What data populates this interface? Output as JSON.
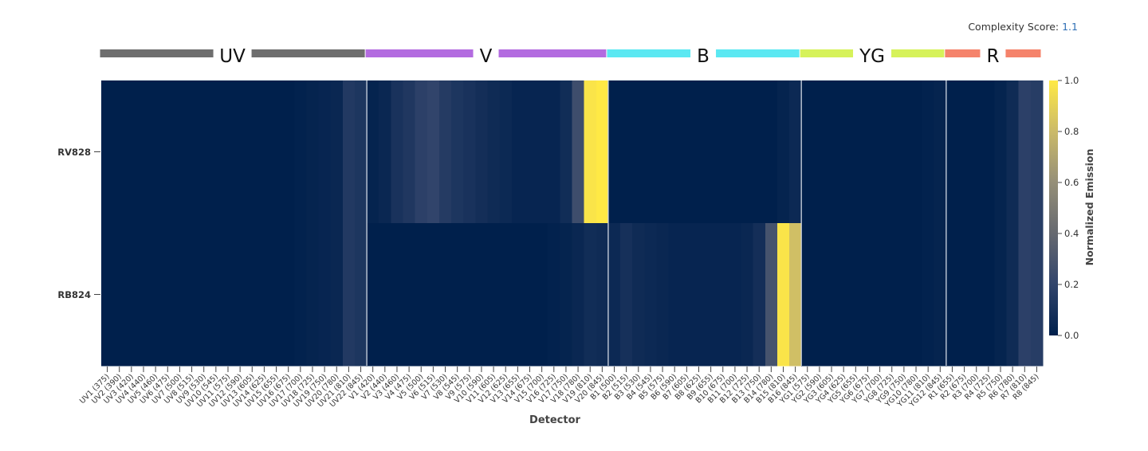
{
  "header": {
    "complexity_label": "Complexity Score:",
    "complexity_value": "1.1"
  },
  "chart_data": {
    "type": "heatmap",
    "xlabel": "Detector",
    "colorbar_label": "Normalized Emission",
    "zlim": [
      0,
      1
    ],
    "colorbar_ticks": [
      "0.0",
      "0.2",
      "0.4",
      "0.6",
      "0.8",
      "1.0"
    ],
    "colorscale": [
      "#00204c",
      "#31446b",
      "#666970",
      "#958f78",
      "#cbba69",
      "#ffe945"
    ],
    "rows": [
      "RV828",
      "RB824"
    ],
    "groups": [
      {
        "name": "UV",
        "start": 0,
        "count": 22,
        "color": "#6e6e6e"
      },
      {
        "name": "V",
        "start": 22,
        "count": 20,
        "color": "#b36be0"
      },
      {
        "name": "B",
        "start": 42,
        "count": 16,
        "color": "#5be8f2"
      },
      {
        "name": "YG",
        "start": 58,
        "count": 12,
        "color": "#d6f25a"
      },
      {
        "name": "R",
        "start": 70,
        "count": 8,
        "color": "#f5836b"
      }
    ],
    "detectors": [
      "UV1 (375)",
      "UV2 (390)",
      "UV3 (420)",
      "UV4 (440)",
      "UV5 (460)",
      "UV6 (475)",
      "UV7 (500)",
      "UV8 (515)",
      "UV9 (530)",
      "UV10 (545)",
      "UV11 (575)",
      "UV12 (590)",
      "UV13 (605)",
      "UV14 (625)",
      "UV15 (655)",
      "UV16 (675)",
      "UV17 (700)",
      "UV18 (725)",
      "UV19 (750)",
      "UV20 (780)",
      "UV21 (810)",
      "UV22 (845)",
      "V1 (420)",
      "V2 (440)",
      "V3 (460)",
      "V4 (475)",
      "V5 (500)",
      "V6 (515)",
      "V7 (530)",
      "V8 (545)",
      "V9 (575)",
      "V10 (590)",
      "V11 (605)",
      "V12 (625)",
      "V13 (655)",
      "V14 (675)",
      "V15 (700)",
      "V16 (725)",
      "V17 (750)",
      "V18 (780)",
      "V19 (810)",
      "V20 (845)",
      "B1 (500)",
      "B2 (515)",
      "B3 (530)",
      "B4 (545)",
      "B5 (575)",
      "B6 (590)",
      "B7 (605)",
      "B8 (625)",
      "B9 (655)",
      "B10 (675)",
      "B11 (700)",
      "B12 (725)",
      "B13 (750)",
      "B14 (780)",
      "B15 (810)",
      "B16 (845)",
      "YG1 (575)",
      "YG2 (590)",
      "YG3 (605)",
      "YG4 (625)",
      "YG5 (655)",
      "YG6 (675)",
      "YG7 (700)",
      "YG8 (725)",
      "YG9 (750)",
      "YG10 (780)",
      "YG11 (810)",
      "YG12 (845)",
      "R1 (655)",
      "R2 (675)",
      "R3 (700)",
      "R4 (725)",
      "R5 (750)",
      "R6 (780)",
      "R7 (810)",
      "R8 (845)"
    ],
    "values": [
      [
        0,
        0,
        0,
        0,
        0,
        0,
        0,
        0,
        0,
        0,
        0,
        0,
        0,
        0,
        0,
        0,
        0.01,
        0.02,
        0.03,
        0.04,
        0.14,
        0.12,
        0.02,
        0.04,
        0.1,
        0.13,
        0.18,
        0.2,
        0.15,
        0.12,
        0.1,
        0.08,
        0.06,
        0.05,
        0.03,
        0.03,
        0.03,
        0.03,
        0.07,
        0.25,
        0.98,
        1.0,
        0,
        0,
        0,
        0,
        0,
        0,
        0,
        0,
        0,
        0,
        0,
        0,
        0,
        0,
        0.02,
        0.05,
        0,
        0,
        0,
        0,
        0,
        0,
        0,
        0,
        0,
        0,
        0.01,
        0.02,
        0,
        0,
        0,
        0,
        0.02,
        0.06,
        0.18,
        0.16
      ],
      [
        0,
        0,
        0,
        0,
        0,
        0,
        0,
        0,
        0,
        0,
        0,
        0,
        0,
        0,
        0,
        0,
        0.01,
        0.02,
        0.03,
        0.04,
        0.14,
        0.12,
        0,
        0,
        0,
        0,
        0,
        0,
        0,
        0,
        0,
        0,
        0,
        0,
        0,
        0,
        0,
        0.01,
        0.02,
        0.04,
        0.07,
        0.06,
        0.05,
        0.09,
        0.06,
        0.05,
        0.04,
        0.03,
        0.03,
        0.03,
        0.03,
        0.03,
        0.03,
        0.04,
        0.08,
        0.28,
        0.98,
        0.82,
        0,
        0,
        0,
        0,
        0,
        0,
        0,
        0,
        0,
        0,
        0.01,
        0.02,
        0,
        0,
        0,
        0,
        0.02,
        0.06,
        0.18,
        0.16
      ]
    ]
  }
}
